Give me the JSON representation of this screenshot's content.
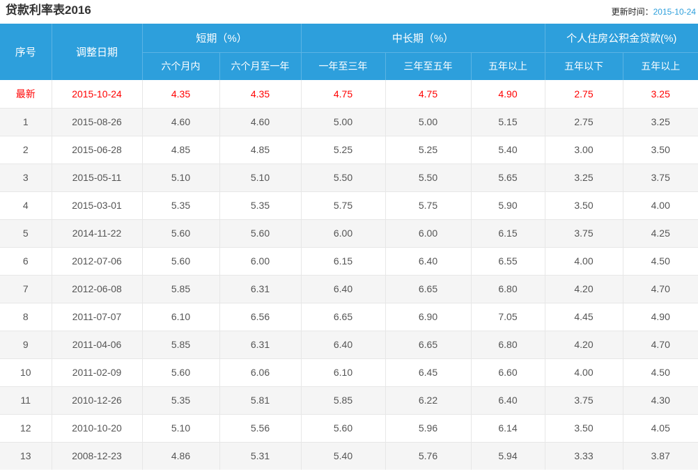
{
  "page": {
    "title": "贷款利率表2016",
    "update_label": "更新时间：",
    "update_date": "2015-10-24"
  },
  "table": {
    "header": {
      "col_serial": "序号",
      "col_date": "调整日期",
      "group_short": "短期（%）",
      "group_mid_long": "中长期（%）",
      "group_housing_fund": "个人住房公积金贷款(%)",
      "sub_within_6m": "六个月内",
      "sub_6m_to_1y": "六个月至一年",
      "sub_1y_to_3y": "一年至三年",
      "sub_3y_to_5y": "三年至五年",
      "sub_over_5y_mid": "五年以上",
      "sub_under_5y_fund": "五年以下",
      "sub_over_5y_fund": "五年以上"
    },
    "rows": [
      {
        "serial": "最新",
        "date": "2015-10-24",
        "values": [
          "4.35",
          "4.35",
          "4.75",
          "4.75",
          "4.90",
          "2.75",
          "3.25"
        ],
        "highlight": true
      },
      {
        "serial": "1",
        "date": "2015-08-26",
        "values": [
          "4.60",
          "4.60",
          "5.00",
          "5.00",
          "5.15",
          "2.75",
          "3.25"
        ]
      },
      {
        "serial": "2",
        "date": "2015-06-28",
        "values": [
          "4.85",
          "4.85",
          "5.25",
          "5.25",
          "5.40",
          "3.00",
          "3.50"
        ]
      },
      {
        "serial": "3",
        "date": "2015-05-11",
        "values": [
          "5.10",
          "5.10",
          "5.50",
          "5.50",
          "5.65",
          "3.25",
          "3.75"
        ]
      },
      {
        "serial": "4",
        "date": "2015-03-01",
        "values": [
          "5.35",
          "5.35",
          "5.75",
          "5.75",
          "5.90",
          "3.50",
          "4.00"
        ]
      },
      {
        "serial": "5",
        "date": "2014-11-22",
        "values": [
          "5.60",
          "5.60",
          "6.00",
          "6.00",
          "6.15",
          "3.75",
          "4.25"
        ]
      },
      {
        "serial": "6",
        "date": "2012-07-06",
        "values": [
          "5.60",
          "6.00",
          "6.15",
          "6.40",
          "6.55",
          "4.00",
          "4.50"
        ]
      },
      {
        "serial": "7",
        "date": "2012-06-08",
        "values": [
          "5.85",
          "6.31",
          "6.40",
          "6.65",
          "6.80",
          "4.20",
          "4.70"
        ]
      },
      {
        "serial": "8",
        "date": "2011-07-07",
        "values": [
          "6.10",
          "6.56",
          "6.65",
          "6.90",
          "7.05",
          "4.45",
          "4.90"
        ]
      },
      {
        "serial": "9",
        "date": "2011-04-06",
        "values": [
          "5.85",
          "6.31",
          "6.40",
          "6.65",
          "6.80",
          "4.20",
          "4.70"
        ]
      },
      {
        "serial": "10",
        "date": "2011-02-09",
        "values": [
          "5.60",
          "6.06",
          "6.10",
          "6.45",
          "6.60",
          "4.00",
          "4.50"
        ]
      },
      {
        "serial": "11",
        "date": "2010-12-26",
        "values": [
          "5.35",
          "5.81",
          "5.85",
          "6.22",
          "6.40",
          "3.75",
          "4.30"
        ]
      },
      {
        "serial": "12",
        "date": "2010-10-20",
        "values": [
          "5.10",
          "5.56",
          "5.60",
          "5.96",
          "6.14",
          "3.50",
          "4.05"
        ]
      },
      {
        "serial": "13",
        "date": "2008-12-23",
        "values": [
          "4.86",
          "5.31",
          "5.40",
          "5.76",
          "5.94",
          "3.33",
          "3.87"
        ]
      }
    ]
  },
  "colors": {
    "header_bg": "#2D9FDC",
    "header_divider": "#5BB4E4",
    "latest_text": "#FF0000",
    "alt_row_bg": "#F5F5F5",
    "cell_border": "#E7E7E7",
    "body_text": "#555555",
    "title_text": "#333333",
    "update_date_text": "#2D9FDC"
  }
}
